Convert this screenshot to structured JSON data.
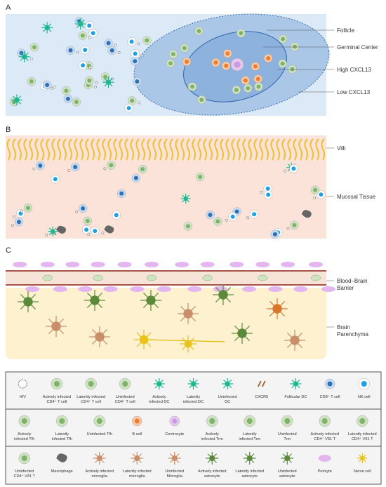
{
  "panels": [
    {
      "letter": "A",
      "labels": [
        [
          "Follicle"
        ],
        [
          "Germinal Center"
        ],
        [
          "High CXCL13"
        ],
        [
          "Low CXCL13"
        ]
      ]
    },
    {
      "letter": "B",
      "labels": [
        [
          "Villi"
        ],
        [
          "Mucosal Tissue"
        ]
      ]
    },
    {
      "letter": "C",
      "labels": [
        [
          "Blood–Brain",
          "Barrier"
        ],
        [
          "Brain",
          "Parenchyma"
        ]
      ]
    }
  ],
  "legend": {
    "rows": [
      {
        "items": [
          {
            "label": [
              "HIV"
            ]
          },
          {
            "label": [
              "Actively infected",
              "CD4⁺ T cell"
            ]
          },
          {
            "label": [
              "Latently infected",
              "CD4⁺ T cell"
            ]
          },
          {
            "label": [
              "Uninfected",
              "CD4⁺ T cell"
            ]
          },
          {
            "label": [
              "Actively",
              "infected  DC"
            ]
          },
          {
            "label": [
              "Latently",
              "infected  DC"
            ]
          },
          {
            "label": [
              "Uninfected",
              "DC"
            ]
          },
          {
            "label": [
              "CXCR5"
            ]
          },
          {
            "label": [
              "Follicular DC"
            ]
          },
          {
            "label": [
              "CD8⁺ T cell"
            ]
          },
          {
            "label": [
              "NK cell"
            ]
          }
        ]
      },
      {
        "items": [
          {
            "label": [
              "Actively",
              "infected  Tfh"
            ]
          },
          {
            "label": [
              "Latently",
              "infected  Tfh"
            ]
          },
          {
            "label": [
              "Uninfected Tfh"
            ]
          },
          {
            "label": [
              "B cell"
            ]
          },
          {
            "label": [
              "Centrocyte"
            ]
          },
          {
            "label": [
              "Actively",
              "infected Trm"
            ]
          },
          {
            "label": [
              "Latently",
              "infected Trm"
            ]
          },
          {
            "label": [
              "Uninfected",
              "Trm"
            ]
          },
          {
            "label": [
              "Actively infected",
              "CD4⁺ Vδ1 T"
            ]
          },
          {
            "label": [
              "Latently infected",
              "CD4⁺ Vδ1 T"
            ]
          }
        ]
      },
      {
        "items": [
          {
            "label": [
              "Uninfected",
              "CD4⁺ Vδ1 T"
            ]
          },
          {
            "label": [
              "Macrophage"
            ]
          },
          {
            "label": [
              "Actively infected",
              "microglia"
            ]
          },
          {
            "label": [
              "Latently infected",
              "microglia"
            ]
          },
          {
            "label": [
              "Uninfected",
              "Microglia"
            ]
          },
          {
            "label": [
              "Actively infected",
              "astrocyte"
            ]
          },
          {
            "label": [
              "Latently infected",
              "astrocyte"
            ]
          },
          {
            "label": [
              "Uninfected",
              "astrocyte"
            ]
          },
          {
            "label": [
              "Pericyte"
            ]
          },
          {
            "label": [
              "Nerve cell"
            ]
          }
        ]
      }
    ]
  }
}
